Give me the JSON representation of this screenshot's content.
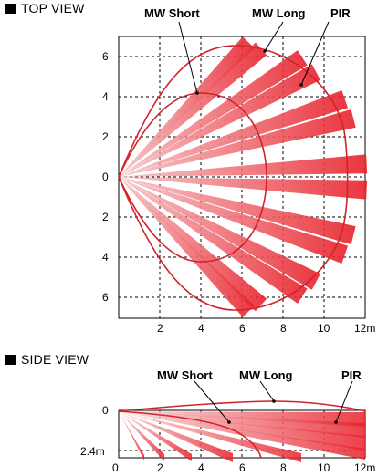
{
  "top_view": {
    "title": "TOP VIEW",
    "callouts": {
      "mw_short": "MW Short",
      "mw_long": "MW Long",
      "pir": "PIR"
    },
    "y_ticks": [
      "6",
      "4",
      "2",
      "0",
      "2",
      "4",
      "6"
    ],
    "x_ticks": [
      "2",
      "4",
      "6",
      "8",
      "10",
      "12m"
    ]
  },
  "side_view": {
    "title": "SIDE VIEW",
    "callouts": {
      "mw_short": "MW Short",
      "mw_long": "MW Long",
      "pir": "PIR"
    },
    "y_ticks": [
      "0",
      "2.4m"
    ],
    "x_ticks": [
      "0",
      "2",
      "4",
      "6",
      "8",
      "10",
      "12m"
    ]
  },
  "colors": {
    "beam": "#e8202a",
    "outline": "#d0232a",
    "grid": "#000000"
  }
}
